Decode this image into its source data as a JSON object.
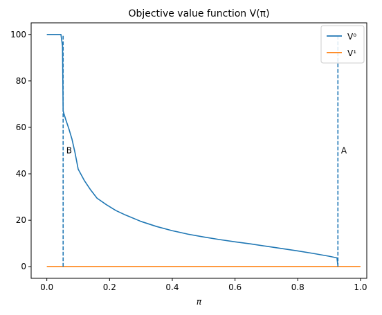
{
  "chart_data": {
    "type": "line",
    "title": "Objective value function V(π)",
    "xlabel": "π",
    "ylabel": "",
    "xlim": [
      -0.05,
      1.02
    ],
    "ylim": [
      -5,
      105
    ],
    "xticks": [
      0.0,
      0.2,
      0.4,
      0.6,
      0.8,
      1.0
    ],
    "xtick_labels": [
      "0.0",
      "0.2",
      "0.4",
      "0.6",
      "0.8",
      "1.0"
    ],
    "yticks": [
      0,
      20,
      40,
      60,
      80,
      100
    ],
    "ytick_labels": [
      "0",
      "20",
      "40",
      "60",
      "80",
      "100"
    ],
    "grid": false,
    "legend_position": "top-right",
    "series": [
      {
        "name": "V⁰",
        "color": "#1f77b4",
        "x": [
          0.0,
          0.045,
          0.05,
          0.052,
          0.06,
          0.07,
          0.08,
          0.09,
          0.1,
          0.12,
          0.14,
          0.16,
          0.19,
          0.22,
          0.25,
          0.3,
          0.35,
          0.4,
          0.45,
          0.5,
          0.55,
          0.6,
          0.65,
          0.7,
          0.75,
          0.8,
          0.85,
          0.9,
          0.925,
          0.928
        ],
        "y": [
          100,
          100,
          95,
          67,
          63.5,
          59.5,
          55,
          49,
          42,
          37,
          33,
          29.5,
          26.7,
          24.2,
          22.3,
          19.5,
          17.3,
          15.5,
          14.0,
          12.8,
          11.7,
          10.7,
          9.8,
          8.8,
          7.8,
          6.8,
          5.7,
          4.5,
          3.8,
          0.3
        ]
      },
      {
        "name": "V¹",
        "color": "#ff7f0e",
        "x": [
          0.0,
          1.0
        ],
        "y": [
          0,
          0
        ]
      }
    ],
    "reference_lines": [
      {
        "x": 0.052,
        "y_range": [
          0,
          100
        ],
        "style": "dashed",
        "color": "#1f77b4"
      },
      {
        "x": 0.928,
        "y_range": [
          0,
          100
        ],
        "style": "dashed",
        "color": "#1f77b4"
      }
    ],
    "annotations": [
      {
        "text": "B",
        "x": 0.062,
        "y": 50
      },
      {
        "text": "A",
        "x": 0.938,
        "y": 50
      }
    ]
  }
}
